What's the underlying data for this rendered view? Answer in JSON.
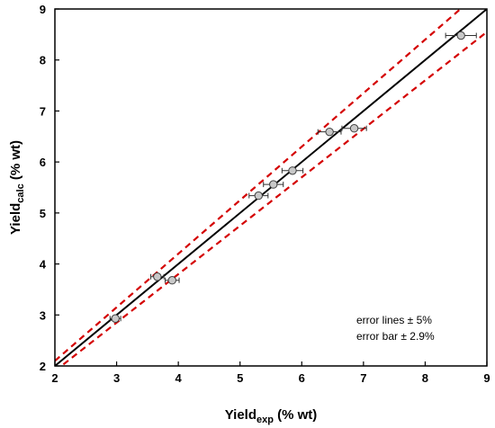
{
  "chart_data": {
    "type": "scatter",
    "xlabel": {
      "main": "Yield",
      "sub": "exp",
      "rest": " (% wt)"
    },
    "ylabel": {
      "main": "Yield",
      "sub": "calc",
      "rest": " (% wt)"
    },
    "xlim": [
      2,
      9
    ],
    "ylim": [
      2,
      9
    ],
    "xticks": [
      "2",
      "3",
      "4",
      "5",
      "6",
      "7",
      "8",
      "9"
    ],
    "yticks": [
      "2",
      "3",
      "4",
      "5",
      "6",
      "7",
      "8",
      "9"
    ],
    "grid": false,
    "points": [
      {
        "x": 2.98,
        "y": 2.93
      },
      {
        "x": 3.66,
        "y": 3.75
      },
      {
        "x": 3.9,
        "y": 3.68
      },
      {
        "x": 5.3,
        "y": 5.34
      },
      {
        "x": 5.54,
        "y": 5.56
      },
      {
        "x": 5.85,
        "y": 5.83
      },
      {
        "x": 6.45,
        "y": 6.59
      },
      {
        "x": 6.85,
        "y": 6.66
      },
      {
        "x": 8.58,
        "y": 8.48
      }
    ],
    "error_bar_fraction": 0.029,
    "error_line_fraction": 0.05,
    "colors": {
      "parity_line": "#000000",
      "error_lines": "#d40000",
      "marker_fill": "#c8c8c8",
      "marker_edge": "#404040",
      "error_bar": "#303030"
    },
    "annotations": [
      "error lines ± 5%",
      "error bar ± 2.9%"
    ]
  }
}
